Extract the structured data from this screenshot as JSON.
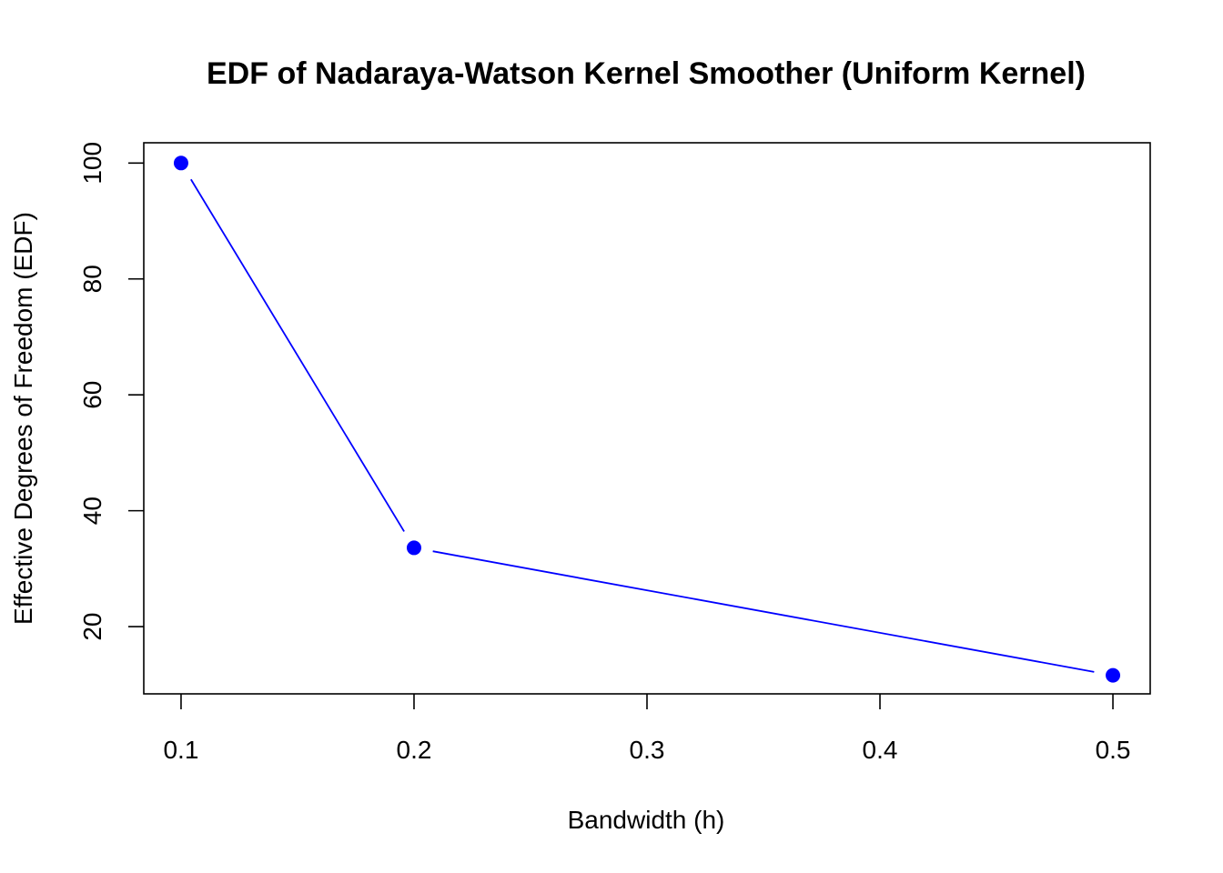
{
  "chart_data": {
    "type": "line",
    "title": "EDF of Nadaraya-Watson Kernel Smoother (Uniform Kernel)",
    "xlabel": "Bandwidth (h)",
    "ylabel": "Effective Degrees of Freedom (EDF)",
    "x": [
      0.1,
      0.2,
      0.5
    ],
    "series": [
      {
        "values": [
          100,
          33.6,
          11.6
        ]
      }
    ],
    "xticks": [
      "0.1",
      "0.2",
      "0.3",
      "0.4",
      "0.5"
    ],
    "yticks": [
      "20",
      "40",
      "60",
      "80",
      "100"
    ],
    "xlim": [
      0.084,
      0.516
    ],
    "ylim": [
      8.4,
      103.5
    ],
    "grid": false,
    "line_color": "#0000ff",
    "marker": "filled-circle"
  }
}
